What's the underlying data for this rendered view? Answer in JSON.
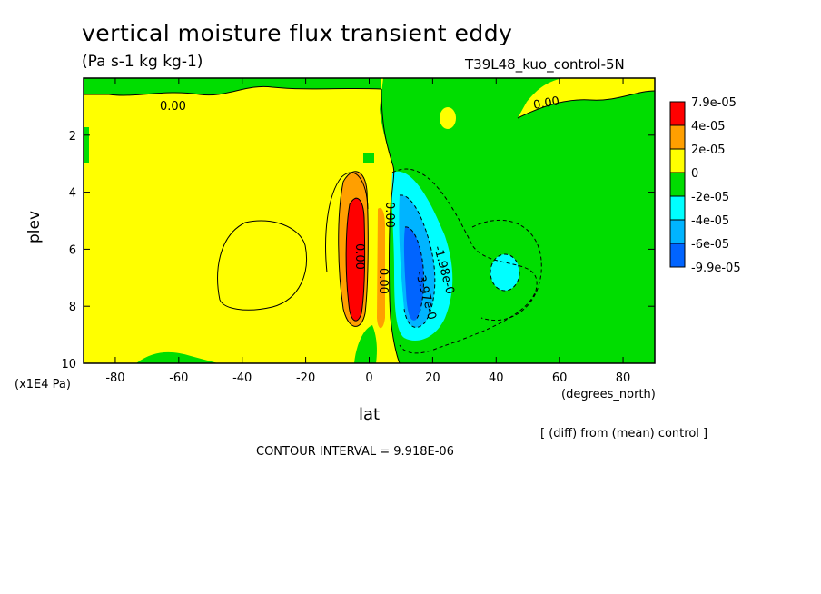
{
  "header": {
    "title": "vertical moisture flux transient eddy",
    "units": "(Pa s-1 kg kg-1)",
    "run_id": "T39L48_kuo_control-5N"
  },
  "footer": {
    "diff_note": "[ (diff) from (mean) control ]",
    "contour_interval": "CONTOUR INTERVAL = 9.918E-06"
  },
  "chart_data": {
    "type": "heatmap",
    "title": "vertical moisture flux transient eddy",
    "xlabel": "lat",
    "xunits": "(degrees_north)",
    "ylabel": "plev",
    "yunits": "(x1E4 Pa)",
    "xlim": [
      -90,
      90
    ],
    "ylim": [
      10,
      0
    ],
    "x_ticks": [
      -80,
      -60,
      -40,
      -20,
      0,
      20,
      40,
      60,
      80
    ],
    "y_ticks": [
      2,
      4,
      6,
      8,
      10
    ],
    "colorbar": [
      {
        "label": "7.9e-05",
        "color": "#ff0000"
      },
      {
        "label": "4e-05",
        "color": "#ff9f00"
      },
      {
        "label": "2e-05",
        "color": "#ffff00"
      },
      {
        "label": "0",
        "color": "#00dd00"
      },
      {
        "label": "-2e-05",
        "color": "#00ffff"
      },
      {
        "label": "-4e-05",
        "color": "#00b4ff"
      },
      {
        "label": "-6e-05",
        "color": "#0064ff"
      },
      {
        "label": "-9.9e-05",
        "color": "#0064ff"
      }
    ],
    "contour_labels": [
      "0.00",
      "0.00",
      "0.00",
      "-1.98e-0",
      "-3.97e-0",
      "0.00",
      "0.00"
    ],
    "fill_colors": {
      "positive_small": "#ffff00",
      "negative_small": "#00dd00",
      "positive_mid": "#ff9f00",
      "positive_high": "#ff0000",
      "negative_mid": "#00ffff",
      "negative_high": "#00b4ff",
      "negative_max": "#0064ff"
    }
  }
}
